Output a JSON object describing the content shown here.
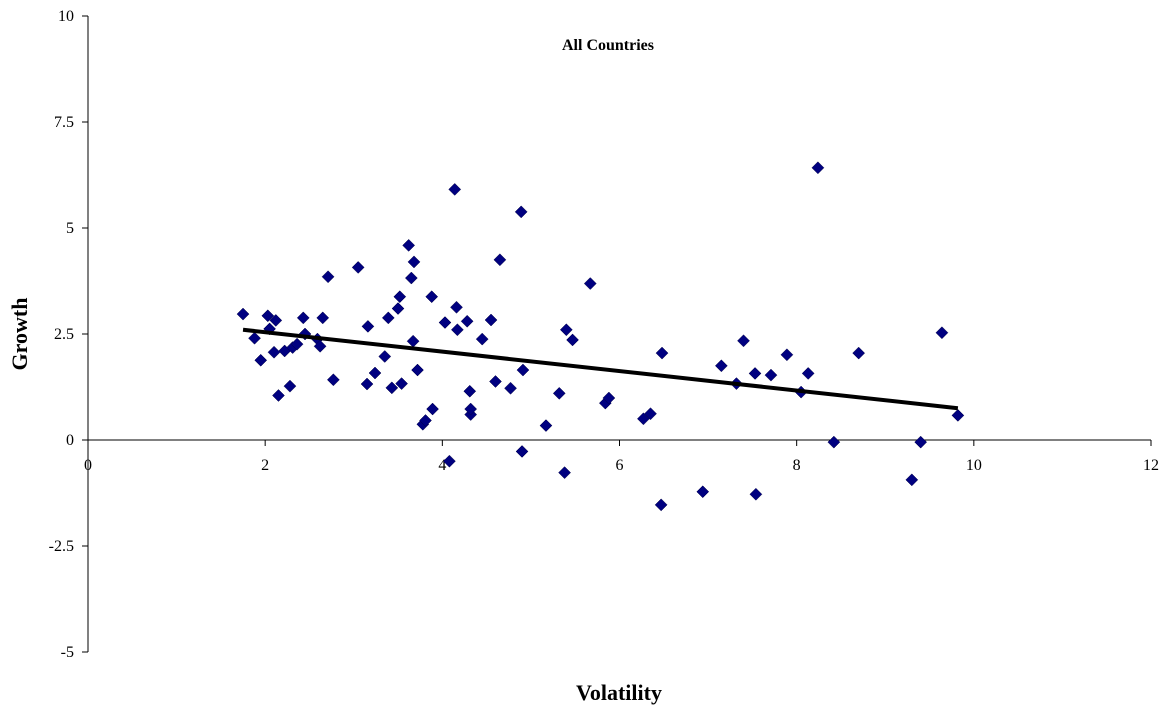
{
  "chart_data": {
    "type": "scatter",
    "title": "All Countries",
    "xlabel": "Volatility",
    "ylabel": "Growth",
    "xlim": [
      0,
      12
    ],
    "ylim": [
      -5,
      10
    ],
    "xticks": [
      "0",
      "2",
      "4",
      "6",
      "8",
      "10",
      "12"
    ],
    "yticks": [
      "10",
      "7.5",
      "5",
      "2.5",
      "0",
      "-2.5",
      "-5"
    ],
    "grid": false,
    "legend": "none",
    "marker": "diamond",
    "marker_color": "#000080",
    "trendline": {
      "x": [
        1.75,
        9.82
      ],
      "y": [
        2.6,
        0.75
      ],
      "color": "#000000"
    },
    "series": [
      {
        "x": [
          1.75,
          1.88,
          1.95,
          2.03,
          2.05,
          2.1,
          2.12,
          2.15,
          2.22,
          2.28,
          2.31,
          2.36,
          2.43,
          2.45,
          2.59,
          2.62,
          2.65,
          2.71,
          2.77,
          3.05,
          3.15,
          3.16,
          3.24,
          3.35,
          3.39,
          3.43,
          3.5,
          3.52,
          3.54,
          3.62,
          3.65,
          3.67,
          3.68,
          3.72,
          3.78,
          3.81,
          3.88,
          3.89,
          4.03,
          4.08,
          4.14,
          4.16,
          4.17,
          4.28,
          4.31,
          4.32,
          4.32,
          4.45,
          4.55,
          4.6,
          4.65,
          4.77,
          4.89,
          4.9,
          4.91,
          5.17,
          5.32,
          5.38,
          5.4,
          5.47,
          5.67,
          5.84,
          5.88,
          6.27,
          6.35,
          6.47,
          6.48,
          6.94,
          7.15,
          7.32,
          7.4,
          7.53,
          7.54,
          7.71,
          7.89,
          8.05,
          8.13,
          8.24,
          8.42,
          8.7,
          9.3,
          9.4,
          9.64,
          9.82
        ],
        "y": [
          2.97,
          2.4,
          1.88,
          2.93,
          2.62,
          2.07,
          2.82,
          1.05,
          2.1,
          1.27,
          2.18,
          2.26,
          2.88,
          2.5,
          2.38,
          2.21,
          2.88,
          3.85,
          1.42,
          4.07,
          1.32,
          2.68,
          1.58,
          1.97,
          2.88,
          1.23,
          3.1,
          3.38,
          1.33,
          4.59,
          3.82,
          2.33,
          4.2,
          1.65,
          0.37,
          0.46,
          3.38,
          0.73,
          2.77,
          -0.5,
          5.91,
          3.13,
          2.6,
          2.8,
          1.15,
          0.6,
          0.73,
          2.38,
          2.83,
          1.38,
          4.25,
          1.22,
          5.38,
          -0.27,
          1.65,
          0.34,
          1.1,
          -0.77,
          2.6,
          2.36,
          3.69,
          0.87,
          0.99,
          0.5,
          0.62,
          -1.53,
          2.05,
          -1.22,
          1.75,
          1.33,
          2.34,
          1.57,
          -1.28,
          1.53,
          2.01,
          1.13,
          1.57,
          6.42,
          -0.05,
          2.05,
          -0.94,
          -0.05,
          2.53,
          0.58
        ]
      }
    ]
  }
}
